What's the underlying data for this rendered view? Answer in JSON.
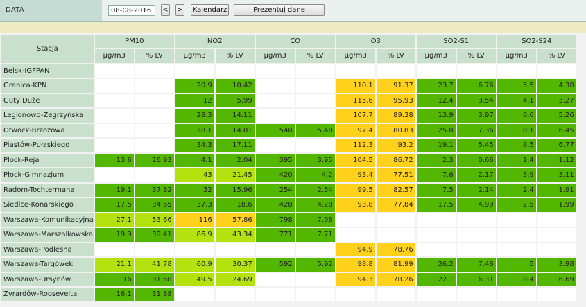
{
  "toolbar": {
    "data_label": "DATA",
    "date_value": "08-08-2016",
    "prev_label": "<",
    "next_label": ">",
    "calendar_label": "Kalendarz",
    "present_label": "Prezentuj dane"
  },
  "table": {
    "station_header": "Stacja",
    "groups": [
      "PM10",
      "NO2",
      "CO",
      "O3",
      "SO2-S1",
      "SO2-S24"
    ],
    "sub_headers": [
      "µg/m3",
      "% LV"
    ],
    "colors": {
      "green": "#53b700",
      "light_green": "#b3e20f",
      "yellow": "#ffd11a",
      "empty": "#ffffff"
    },
    "rows": [
      {
        "station": "Belsk-IGFPAN",
        "cells": [
          [
            "",
            ""
          ],
          [
            "",
            ""
          ],
          [
            "",
            ""
          ],
          [
            "",
            ""
          ],
          [
            "",
            ""
          ],
          [
            "",
            ""
          ]
        ],
        "levels": [
          "",
          "",
          "",
          "",
          "",
          ""
        ]
      },
      {
        "station": "Granica-KPN",
        "cells": [
          [
            "",
            ""
          ],
          [
            "20.9",
            "10.42"
          ],
          [
            "",
            ""
          ],
          [
            "110.1",
            "91.37"
          ],
          [
            "23.7",
            "6.76"
          ],
          [
            "5.5",
            "4.38"
          ]
        ],
        "levels": [
          "",
          "g",
          "",
          "y",
          "g",
          "g"
        ]
      },
      {
        "station": "Guty Duże",
        "cells": [
          [
            "",
            ""
          ],
          [
            "12",
            "5.99"
          ],
          [
            "",
            ""
          ],
          [
            "115.6",
            "95.93"
          ],
          [
            "12.4",
            "3.54"
          ],
          [
            "4.1",
            "3.27"
          ]
        ],
        "levels": [
          "",
          "g",
          "",
          "y",
          "g",
          "g"
        ]
      },
      {
        "station": "Legionowo-Zegrzyńska",
        "cells": [
          [
            "",
            ""
          ],
          [
            "28.3",
            "14.11"
          ],
          [
            "",
            ""
          ],
          [
            "107.7",
            "89.38"
          ],
          [
            "13.9",
            "3.97"
          ],
          [
            "6.6",
            "5.26"
          ]
        ],
        "levels": [
          "",
          "g",
          "",
          "y",
          "g",
          "g"
        ]
      },
      {
        "station": "Otwock-Brzozowa",
        "cells": [
          [
            "",
            ""
          ],
          [
            "28.1",
            "14.01"
          ],
          [
            "548",
            "5.48"
          ],
          [
            "97.4",
            "80.83"
          ],
          [
            "25.8",
            "7.36"
          ],
          [
            "8.1",
            "6.45"
          ]
        ],
        "levels": [
          "",
          "g",
          "g",
          "y",
          "g",
          "g"
        ]
      },
      {
        "station": "Piastów-Pułaskiego",
        "cells": [
          [
            "",
            ""
          ],
          [
            "34.3",
            "17.11"
          ],
          [
            "",
            ""
          ],
          [
            "112.3",
            "93.2"
          ],
          [
            "19.1",
            "5.45"
          ],
          [
            "8.5",
            "6.77"
          ]
        ],
        "levels": [
          "",
          "g",
          "",
          "y",
          "g",
          "g"
        ]
      },
      {
        "station": "Płock-Reja",
        "cells": [
          [
            "13.6",
            "26.93"
          ],
          [
            "4.1",
            "2.04"
          ],
          [
            "395",
            "3.95"
          ],
          [
            "104.5",
            "86.72"
          ],
          [
            "2.3",
            "0.66"
          ],
          [
            "1.4",
            "1.12"
          ]
        ],
        "levels": [
          "g",
          "g",
          "g",
          "y",
          "g",
          "g"
        ]
      },
      {
        "station": "Płock-Gimnazjum",
        "cells": [
          [
            "",
            ""
          ],
          [
            "43",
            "21.45"
          ],
          [
            "420",
            "4.2"
          ],
          [
            "93.4",
            "77.51"
          ],
          [
            "7.6",
            "2.17"
          ],
          [
            "3.9",
            "3.11"
          ]
        ],
        "levels": [
          "",
          "lg",
          "g",
          "y",
          "g",
          "g"
        ]
      },
      {
        "station": "Radom-Tochtermana",
        "cells": [
          [
            "19.1",
            "37.82"
          ],
          [
            "32",
            "15.96"
          ],
          [
            "254",
            "2.54"
          ],
          [
            "99.5",
            "82.57"
          ],
          [
            "7.5",
            "2.14"
          ],
          [
            "2.4",
            "1.91"
          ]
        ],
        "levels": [
          "g",
          "g",
          "g",
          "y",
          "g",
          "g"
        ]
      },
      {
        "station": "Siedlce-Konarskiego",
        "cells": [
          [
            "17.5",
            "34.65"
          ],
          [
            "37.3",
            "18.6"
          ],
          [
            "428",
            "4.28"
          ],
          [
            "93.8",
            "77.84"
          ],
          [
            "17.5",
            "4.99"
          ],
          [
            "2.5",
            "1.99"
          ]
        ],
        "levels": [
          "g",
          "g",
          "g",
          "y",
          "g",
          "g"
        ]
      },
      {
        "station": "Warszawa-Komunikacyjna",
        "cells": [
          [
            "27.1",
            "53.66"
          ],
          [
            "116",
            "57.86"
          ],
          [
            "798",
            "7.98"
          ],
          [
            "",
            ""
          ],
          [
            "",
            ""
          ],
          [
            "",
            ""
          ]
        ],
        "levels": [
          "lg",
          "y",
          "g",
          "",
          "",
          ""
        ]
      },
      {
        "station": "Warszawa-Marszałkowska",
        "cells": [
          [
            "19.9",
            "39.41"
          ],
          [
            "86.9",
            "43.34"
          ],
          [
            "771",
            "7.71"
          ],
          [
            "",
            ""
          ],
          [
            "",
            ""
          ],
          [
            "",
            ""
          ]
        ],
        "levels": [
          "g",
          "lg",
          "g",
          "",
          "",
          ""
        ]
      },
      {
        "station": "Warszawa-Podleśna",
        "cells": [
          [
            "",
            ""
          ],
          [
            "",
            ""
          ],
          [
            "",
            ""
          ],
          [
            "94.9",
            "78.76"
          ],
          [
            "",
            ""
          ],
          [
            "",
            ""
          ]
        ],
        "levels": [
          "",
          "",
          "",
          "y",
          "",
          ""
        ]
      },
      {
        "station": "Warszawa-Targówek",
        "cells": [
          [
            "21.1",
            "41.78"
          ],
          [
            "60.9",
            "30.37"
          ],
          [
            "592",
            "5.92"
          ],
          [
            "98.8",
            "81.99"
          ],
          [
            "26.2",
            "7.48"
          ],
          [
            "5",
            "3.98"
          ]
        ],
        "levels": [
          "lg",
          "lg",
          "g",
          "y",
          "g",
          "g"
        ]
      },
      {
        "station": "Warszawa-Ursynów",
        "cells": [
          [
            "16",
            "31.68"
          ],
          [
            "49.5",
            "24.69"
          ],
          [
            "",
            ""
          ],
          [
            "94.3",
            "78.26"
          ],
          [
            "22.1",
            "6.31"
          ],
          [
            "8.4",
            "6.69"
          ]
        ],
        "levels": [
          "g",
          "lg",
          "",
          "y",
          "g",
          "g"
        ]
      },
      {
        "station": "Żyrardów-Roosevelta",
        "cells": [
          [
            "16.1",
            "31.88"
          ],
          [
            "",
            ""
          ],
          [
            "",
            ""
          ],
          [
            "",
            ""
          ],
          [
            "",
            ""
          ],
          [
            "",
            ""
          ]
        ],
        "levels": [
          "g",
          "",
          "",
          "",
          "",
          ""
        ]
      }
    ]
  }
}
